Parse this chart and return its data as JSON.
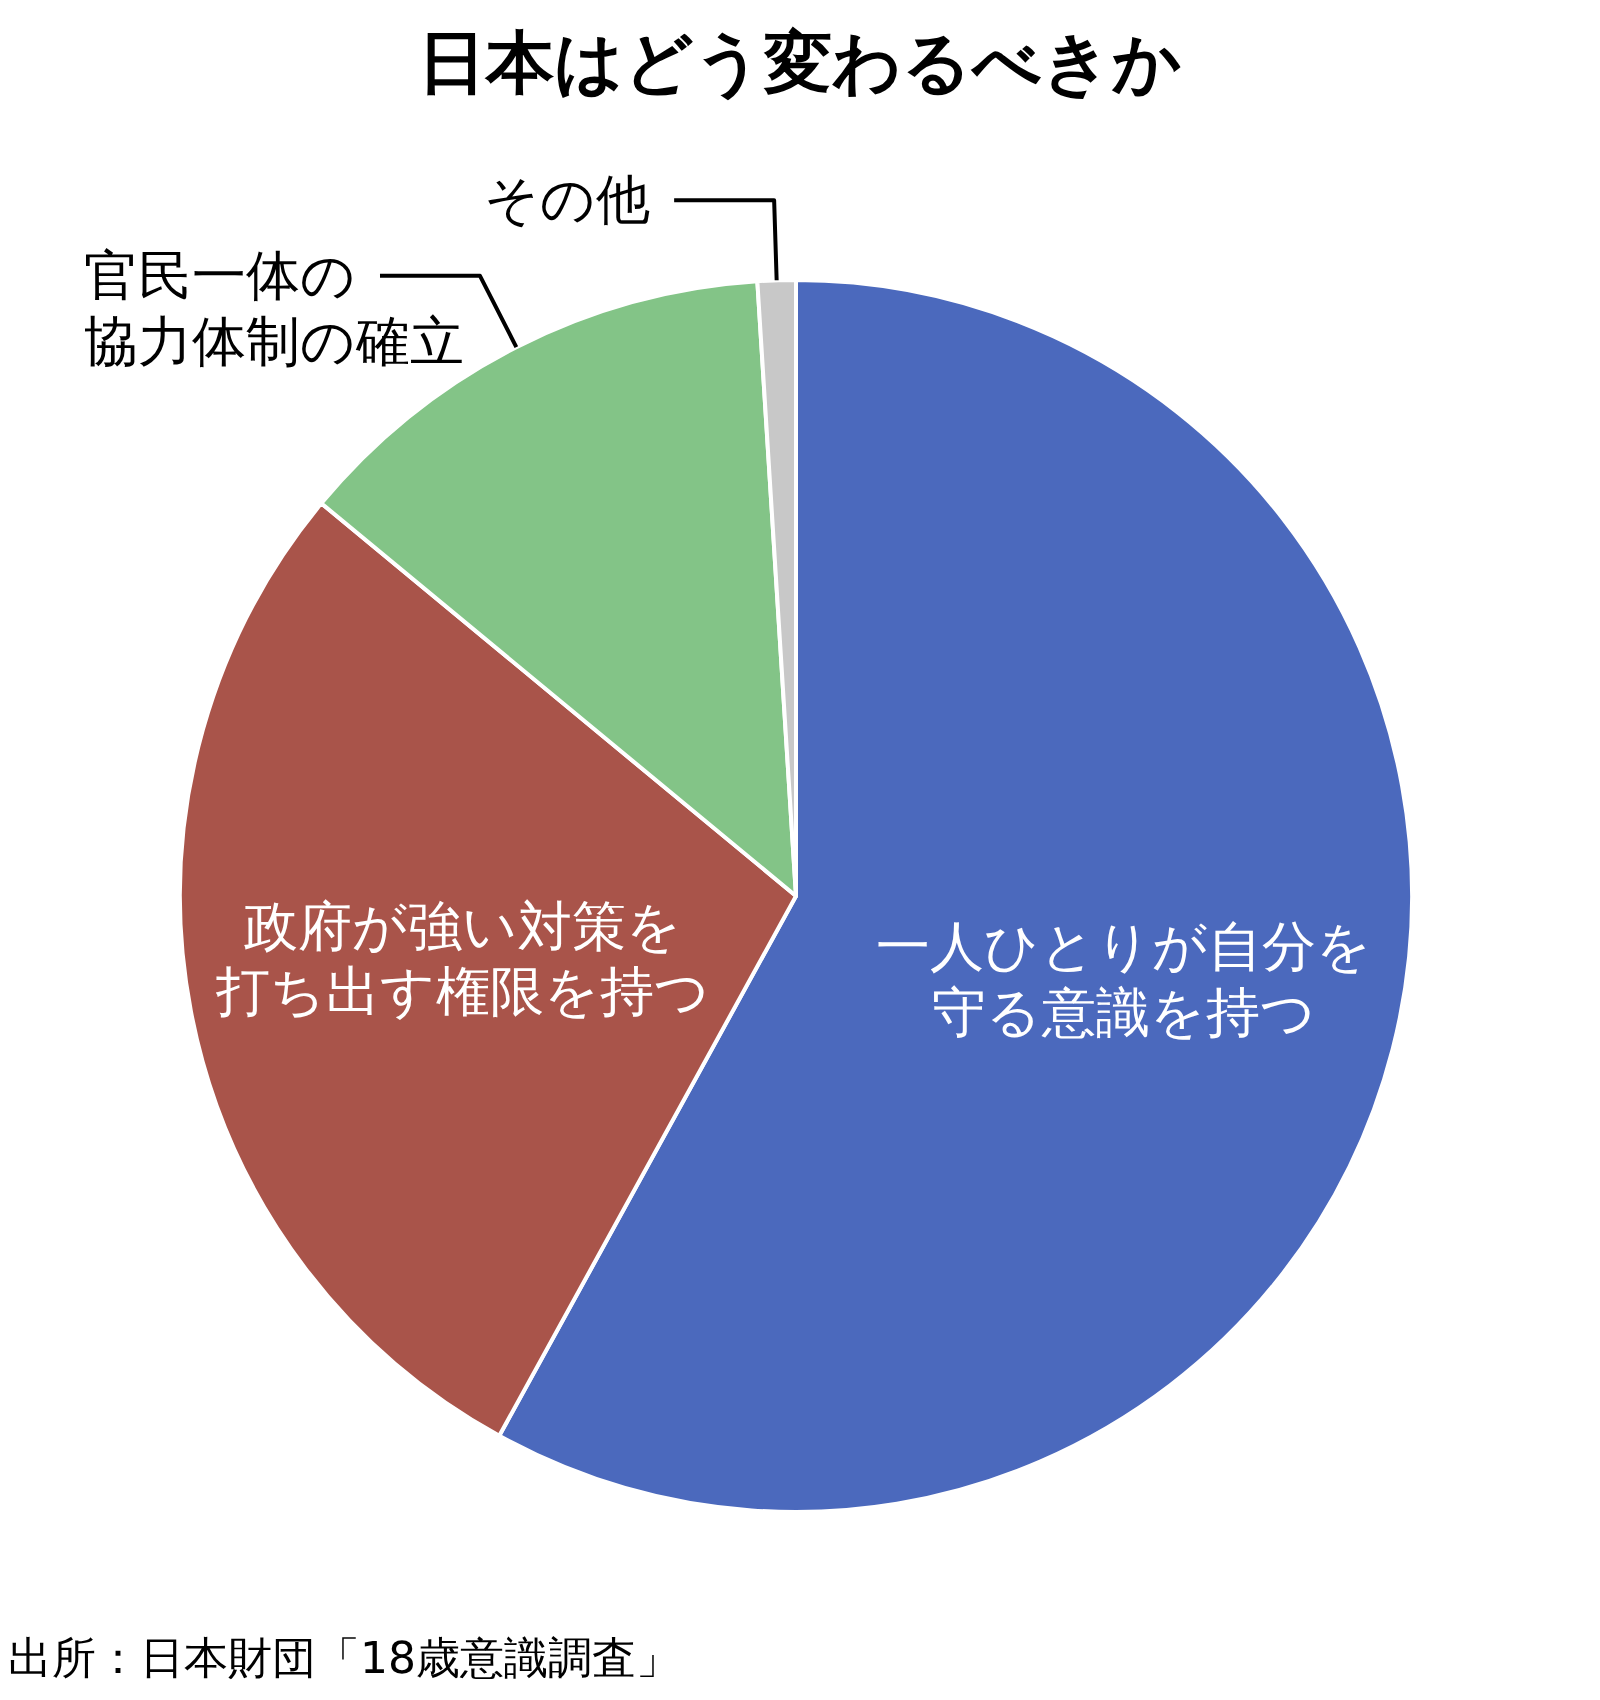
{
  "chart_data": {
    "type": "pie",
    "title": "日本はどう変わるべきか",
    "categories": [
      "一人ひとりが自分を守る意識を持つ",
      "政府が強い対策を打ち出す権限を持つ",
      "官民一体の協力体制の確立",
      "その他"
    ],
    "values": [
      58,
      28,
      13,
      1
    ],
    "colors": [
      "#4b69bd",
      "#a9544a",
      "#83c487",
      "#c8c8c8"
    ],
    "annotations": [
      "出所：日本財団「18歳意識調査」"
    ]
  }
}
